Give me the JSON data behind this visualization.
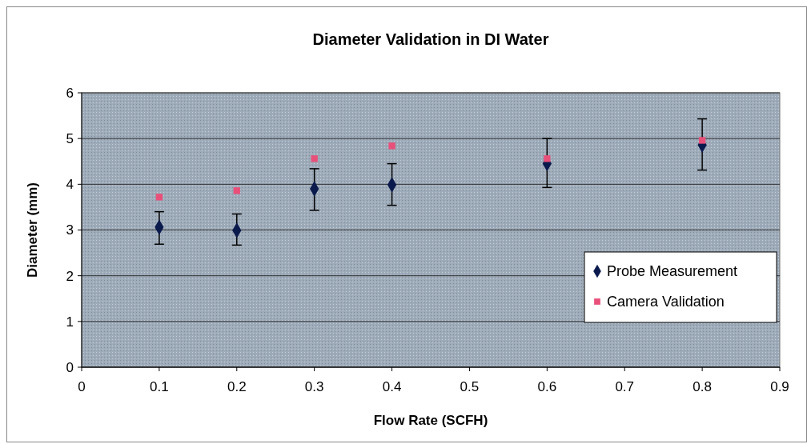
{
  "chart_data": {
    "type": "scatter",
    "title": "Diameter Validation in DI Water",
    "xlabel": "Flow Rate (SCFH)",
    "ylabel": "Diameter (mm)",
    "xlim": [
      0,
      0.9
    ],
    "xticks": [
      0,
      0.1,
      0.2,
      0.3,
      0.4,
      0.5,
      0.6,
      0.7,
      0.8,
      0.9
    ],
    "ylim": [
      0,
      6
    ],
    "yticks": [
      0,
      1,
      2,
      3,
      4,
      5,
      6
    ],
    "grid": "y",
    "legend": "bottom right",
    "series": [
      {
        "name": "Probe Measurement",
        "color": "#0b1a4c",
        "marker": "diamond",
        "x": [
          0.1,
          0.2,
          0.3,
          0.4,
          0.6,
          0.8
        ],
        "values": [
          3.06,
          2.99,
          3.9,
          3.99,
          4.45,
          4.86
        ],
        "errors": [
          [
            2.69,
            3.4
          ],
          [
            2.67,
            3.35
          ],
          [
            3.43,
            4.34
          ],
          [
            3.54,
            4.45
          ],
          [
            3.93,
            5.0
          ],
          [
            4.31,
            5.43
          ]
        ]
      },
      {
        "name": "Camera Validation",
        "color": "#e8507a",
        "marker": "square",
        "x": [
          0.1,
          0.2,
          0.3,
          0.4,
          0.6,
          0.8
        ],
        "values": [
          3.72,
          3.86,
          4.56,
          4.84,
          4.56,
          4.96
        ]
      }
    ]
  }
}
